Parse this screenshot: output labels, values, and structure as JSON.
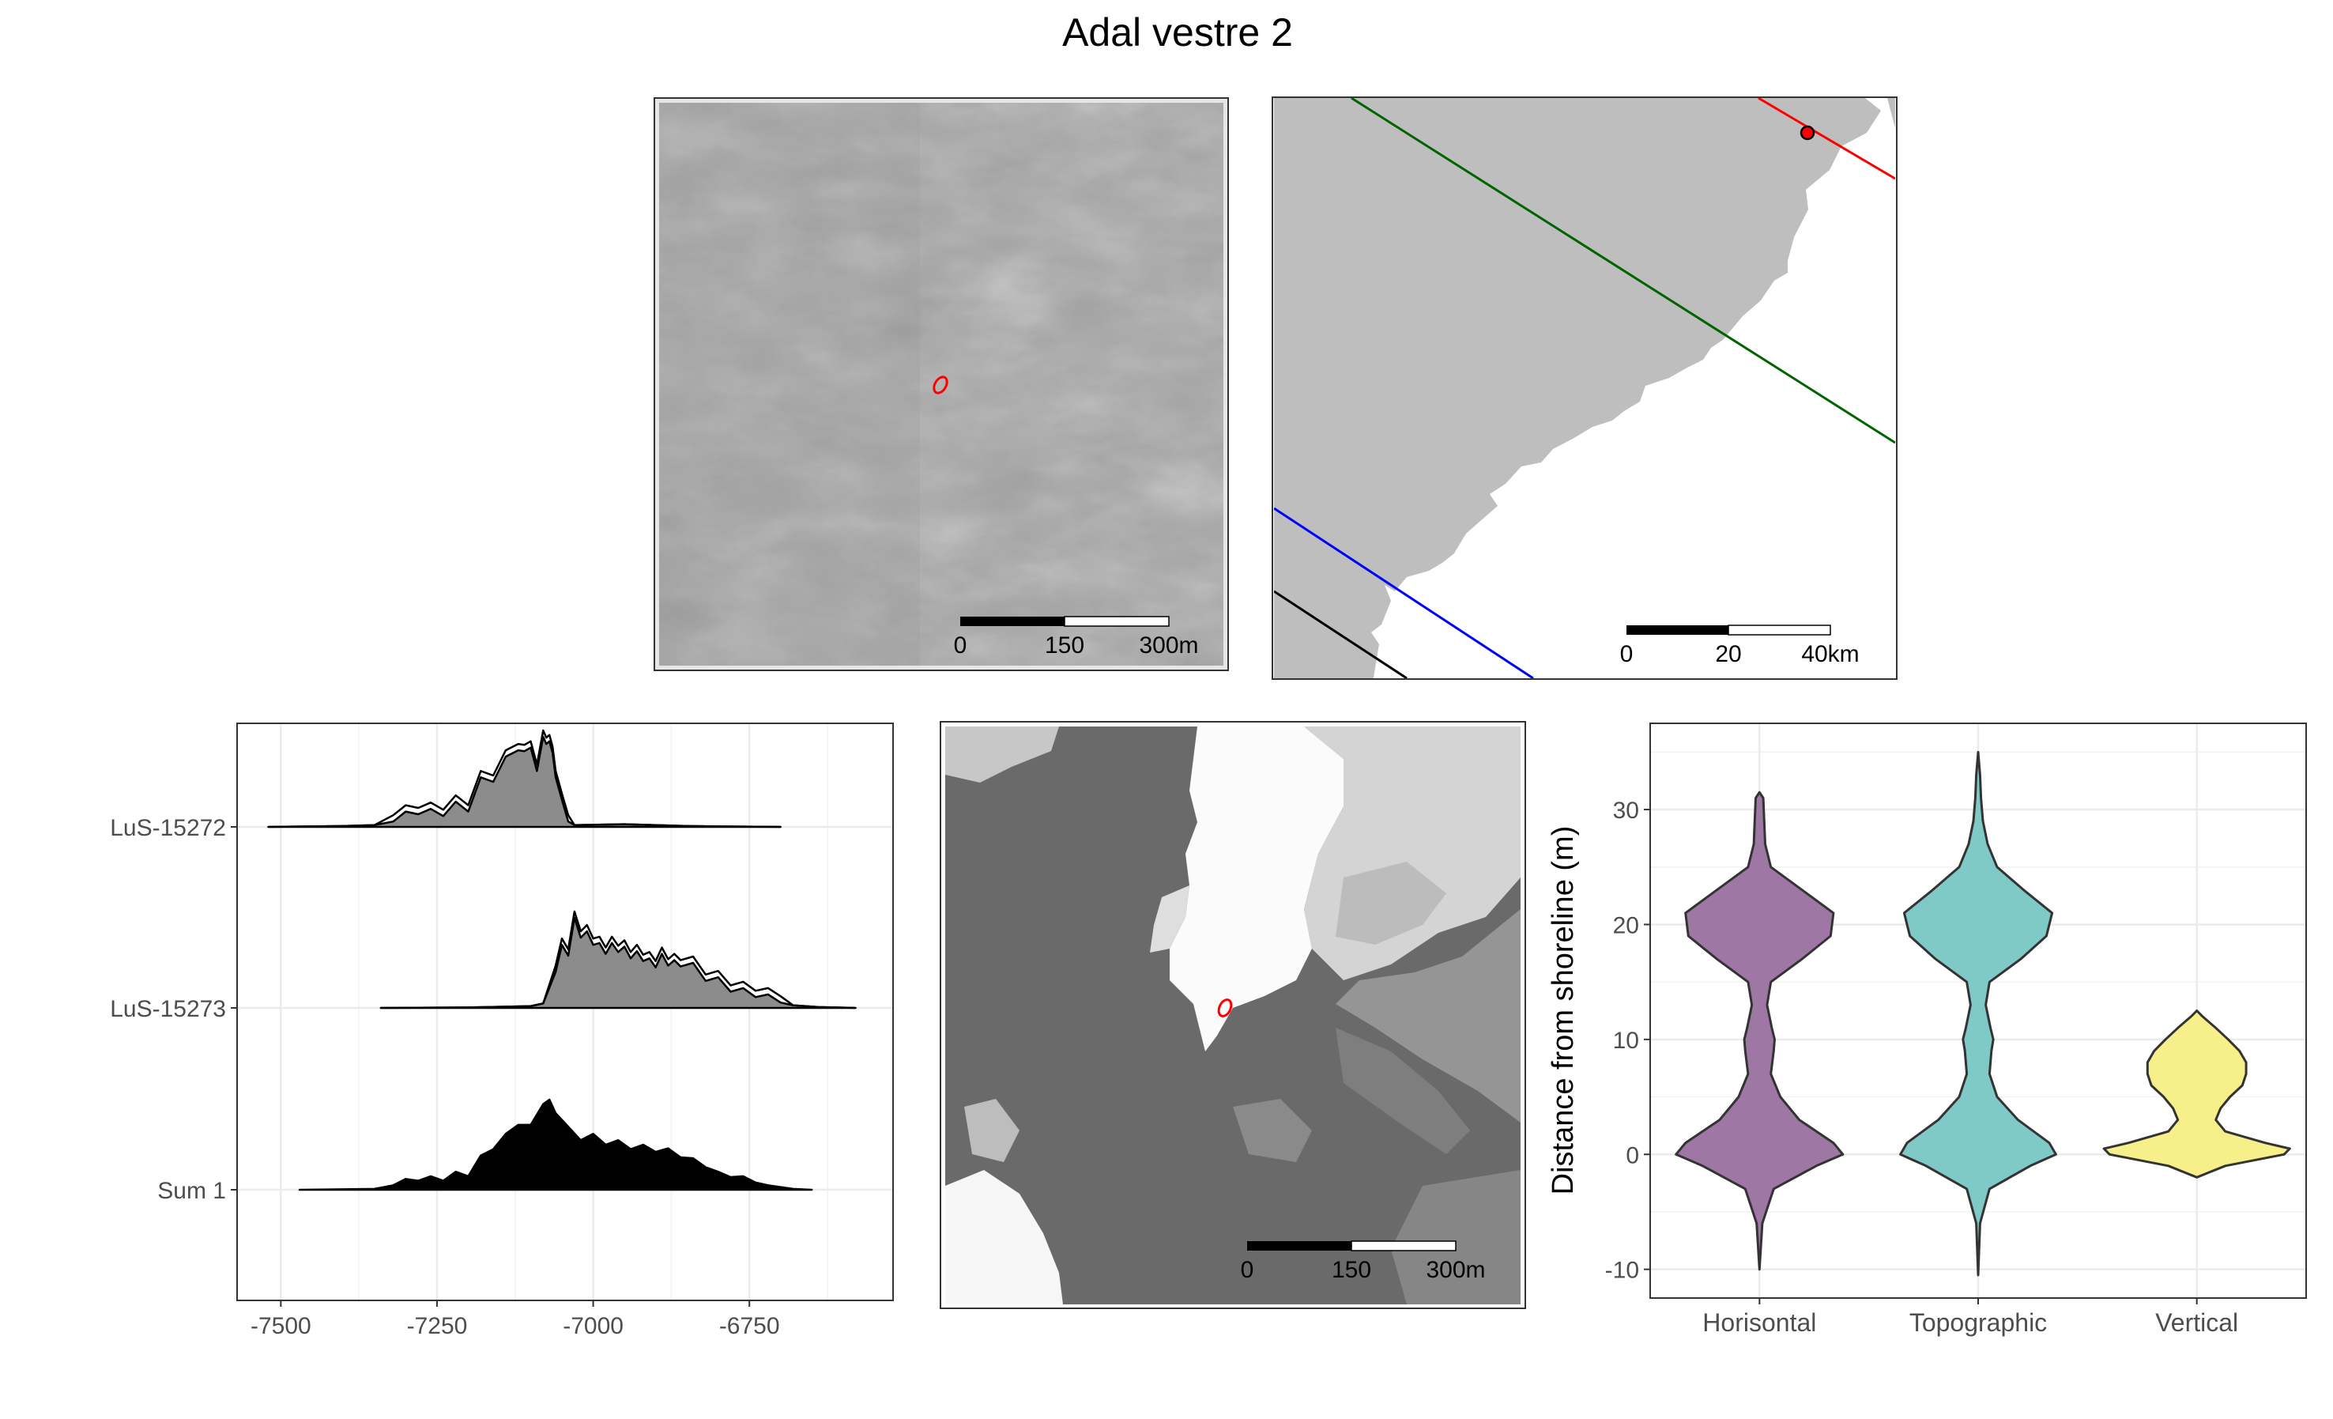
{
  "title": "Adal vestre 2",
  "colors": {
    "panel_border": "#333333",
    "grid": "#ebebeb",
    "hillshade_base": "#a4a4a4",
    "land": "#bebebe",
    "site_marker": "#ff0000",
    "isobase_red": "#ff0000",
    "isobase_green": "#006400",
    "isobase_blue": "#0000ff",
    "isobase_black": "#000000",
    "density_fill": "#8c8c8c",
    "sum_fill": "#000000",
    "violin_horisontal": "#9f77a5",
    "violin_topographic": "#7fc9c6",
    "violin_vertical": "#f7ef8a"
  },
  "maps": {
    "hillshade": {
      "scalebar": {
        "labels": [
          "0",
          "150",
          "300m"
        ]
      }
    },
    "overview": {
      "scalebar": {
        "labels": [
          "0",
          "20",
          "40km"
        ]
      }
    },
    "elevation": {
      "scalebar": {
        "labels": [
          "0",
          "150",
          "300m"
        ]
      }
    }
  },
  "chart_data": [
    {
      "type": "area",
      "subtype": "ridgeline-density",
      "categories": [
        "LuS-15272",
        "LuS-15273",
        "Sum 1"
      ],
      "x_ticks": [
        -7500,
        -7250,
        -7000,
        -6750
      ],
      "x_tick_labels": [
        "-7500",
        "-7250",
        "-7000",
        "-6750"
      ],
      "xlim": [
        -7570,
        -6520
      ],
      "grid": true,
      "series": [
        {
          "name": "LuS-15272",
          "x": [
            -7520,
            -7450,
            -7400,
            -7350,
            -7320,
            -7300,
            -7280,
            -7260,
            -7240,
            -7220,
            -7200,
            -7180,
            -7160,
            -7140,
            -7120,
            -7110,
            -7100,
            -7090,
            -7080,
            -7075,
            -7070,
            -7065,
            -7060,
            -7050,
            -7040,
            -7030,
            -6950,
            -6900,
            -6850,
            -6800,
            -6700
          ],
          "values": [
            0,
            0.005,
            0.01,
            0.02,
            0.06,
            0.17,
            0.14,
            0.2,
            0.12,
            0.28,
            0.17,
            0.55,
            0.5,
            0.78,
            0.85,
            0.84,
            0.88,
            0.62,
            1.0,
            0.92,
            0.95,
            0.82,
            0.55,
            0.3,
            0.06,
            0.02,
            0.03,
            0.02,
            0.01,
            0.005,
            0
          ]
        },
        {
          "name": "LuS-15273",
          "x": [
            -7340,
            -7200,
            -7100,
            -7080,
            -7060,
            -7050,
            -7040,
            -7030,
            -7020,
            -7010,
            -7000,
            -6990,
            -6980,
            -6970,
            -6960,
            -6950,
            -6940,
            -6930,
            -6920,
            -6910,
            -6900,
            -6890,
            -6880,
            -6870,
            -6860,
            -6840,
            -6820,
            -6800,
            -6780,
            -6760,
            -6740,
            -6720,
            -6700,
            -6680,
            -6640,
            -6580
          ],
          "values": [
            0,
            0.005,
            0.02,
            0.05,
            0.4,
            0.7,
            0.58,
            1.0,
            0.78,
            0.85,
            0.7,
            0.72,
            0.6,
            0.72,
            0.62,
            0.68,
            0.55,
            0.63,
            0.52,
            0.55,
            0.45,
            0.6,
            0.47,
            0.53,
            0.46,
            0.5,
            0.3,
            0.34,
            0.18,
            0.22,
            0.12,
            0.15,
            0.06,
            0.03,
            0.01,
            0
          ]
        },
        {
          "name": "Sum 1",
          "x": [
            -7470,
            -7400,
            -7350,
            -7320,
            -7300,
            -7280,
            -7260,
            -7240,
            -7220,
            -7200,
            -7180,
            -7160,
            -7140,
            -7120,
            -7100,
            -7080,
            -7070,
            -7060,
            -7040,
            -7020,
            -7000,
            -6980,
            -6960,
            -6940,
            -6920,
            -6900,
            -6880,
            -6860,
            -6840,
            -6820,
            -6800,
            -6780,
            -6760,
            -6740,
            -6720,
            -6700,
            -6680,
            -6650
          ],
          "values": [
            0,
            0.005,
            0.01,
            0.05,
            0.12,
            0.1,
            0.15,
            0.1,
            0.2,
            0.15,
            0.38,
            0.45,
            0.62,
            0.72,
            0.72,
            0.95,
            1.0,
            0.85,
            0.7,
            0.55,
            0.62,
            0.5,
            0.55,
            0.45,
            0.5,
            0.42,
            0.46,
            0.36,
            0.35,
            0.25,
            0.2,
            0.14,
            0.15,
            0.08,
            0.05,
            0.03,
            0.01,
            0
          ]
        }
      ]
    },
    {
      "type": "violin",
      "categories": [
        "Horisontal",
        "Topographic",
        "Vertical"
      ],
      "ylabel": "Distance from shoreline (m)",
      "y_ticks": [
        -10,
        0,
        10,
        20,
        30
      ],
      "ylim": [
        -12.5,
        37.5
      ],
      "grid": true,
      "series": [
        {
          "name": "Horisontal",
          "y": [
            -10,
            -6,
            -3,
            -1,
            0,
            1,
            3,
            5,
            7,
            9,
            10,
            11,
            13,
            15,
            17,
            19,
            21,
            23,
            25,
            27,
            29,
            31,
            31.5
          ],
          "width": [
            0.0,
            0.03,
            0.15,
            0.6,
            0.88,
            0.78,
            0.42,
            0.22,
            0.12,
            0.15,
            0.16,
            0.13,
            0.08,
            0.12,
            0.45,
            0.75,
            0.78,
            0.45,
            0.12,
            0.06,
            0.05,
            0.04,
            0.0
          ]
        },
        {
          "name": "Topographic",
          "y": [
            -10.5,
            -6,
            -3,
            -1,
            0,
            1,
            3,
            5,
            7,
            9,
            10,
            11,
            13,
            15,
            17,
            19,
            21,
            23,
            25,
            27,
            29,
            31,
            33,
            35
          ],
          "width": [
            0.0,
            0.02,
            0.12,
            0.55,
            0.82,
            0.75,
            0.42,
            0.2,
            0.12,
            0.14,
            0.16,
            0.13,
            0.08,
            0.12,
            0.45,
            0.72,
            0.78,
            0.48,
            0.2,
            0.1,
            0.05,
            0.03,
            0.02,
            0.0
          ]
        },
        {
          "name": "Vertical",
          "y": [
            -2,
            -1,
            0,
            0.5,
            1,
            2,
            3,
            4,
            5,
            6,
            7,
            8,
            9,
            10,
            11,
            12,
            12.5
          ],
          "width": [
            0.0,
            0.3,
            0.92,
            0.98,
            0.72,
            0.3,
            0.2,
            0.25,
            0.35,
            0.48,
            0.52,
            0.52,
            0.45,
            0.33,
            0.2,
            0.06,
            0.0
          ]
        }
      ]
    }
  ]
}
